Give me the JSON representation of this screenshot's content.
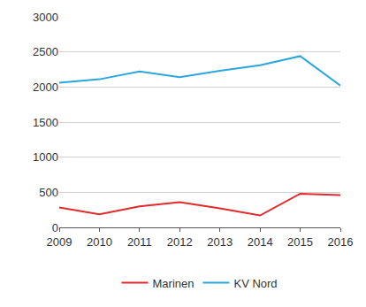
{
  "chart_data": {
    "type": "line",
    "x": [
      2009,
      2010,
      2011,
      2012,
      2013,
      2014,
      2015,
      2016
    ],
    "series": [
      {
        "name": "Marinen",
        "color": "#e2292b",
        "values": [
          285,
          185,
          300,
          360,
          270,
          170,
          480,
          460
        ]
      },
      {
        "name": "KV Nord",
        "color": "#2aa6dc",
        "values": [
          2060,
          2110,
          2220,
          2140,
          2230,
          2310,
          2440,
          2020
        ]
      }
    ],
    "xlim": [
      2009,
      2016
    ],
    "xticks": [
      2009,
      2010,
      2011,
      2012,
      2013,
      2014,
      2015,
      2016
    ],
    "ylim": [
      0,
      3000
    ],
    "yticks": [
      0,
      500,
      1000,
      1500,
      2000,
      2500,
      3000
    ],
    "grid": true,
    "legend": "bottom"
  }
}
